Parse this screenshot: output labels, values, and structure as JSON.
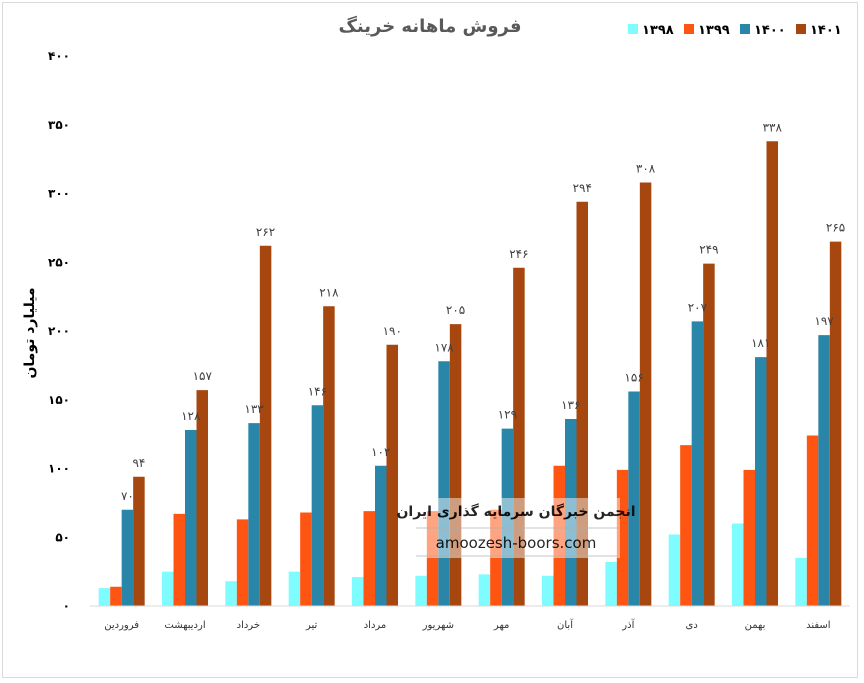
{
  "chart_data": {
    "type": "bar",
    "title": "فروش ماهانه خرینگ",
    "ylabel": "میلیارد تومان",
    "xlabel": "",
    "ylim": [
      0,
      400
    ],
    "yticks": [
      0,
      50,
      100,
      150,
      200,
      250,
      300,
      350,
      400
    ],
    "ytick_labels": [
      "۰",
      "۵۰",
      "۱۰۰",
      "۱۵۰",
      "۲۰۰",
      "۲۵۰",
      "۳۰۰",
      "۳۵۰",
      "۴۰۰"
    ],
    "grid": false,
    "legend_position": "top-right",
    "categories": [
      "فروردین",
      "اردیبهشت",
      "خرداد",
      "تیر",
      "مرداد",
      "شهریور",
      "مهر",
      "آبان",
      "آذر",
      "دی",
      "بهمن",
      "اسفند"
    ],
    "series": [
      {
        "name": "۱۳۹۸",
        "color": "#7ffcff",
        "values": [
          13,
          25,
          18,
          25,
          21,
          22,
          23,
          22,
          32,
          52,
          60,
          35
        ],
        "labels": []
      },
      {
        "name": "۱۳۹۹",
        "color": "#ff5512",
        "values": [
          14,
          67,
          63,
          68,
          69,
          69,
          70,
          102,
          99,
          117,
          99,
          124
        ],
        "labels": []
      },
      {
        "name": "۱۴۰۰",
        "color": "#2a86a8",
        "values": [
          70,
          128,
          133,
          146,
          102,
          178,
          129,
          136,
          156,
          207,
          181,
          197
        ],
        "labels": [
          "۷۰",
          "۱۲۸",
          "۱۳۳",
          "۱۴۶",
          "۱۰۲",
          "۱۷۸",
          "۱۲۹",
          "۱۳۶",
          "۱۵۶",
          "۲۰۷",
          "۱۸۱",
          "۱۹۷"
        ]
      },
      {
        "name": "۱۴۰۱",
        "color": "#a5470e",
        "values": [
          94,
          157,
          262,
          218,
          190,
          205,
          246,
          294,
          308,
          249,
          338,
          265
        ],
        "labels": [
          "۹۴",
          "۱۵۷",
          "۲۶۲",
          "۲۱۸",
          "۱۹۰",
          "۲۰۵",
          "۲۴۶",
          "۲۹۴",
          "۳۰۸",
          "۲۴۹",
          "۳۳۸",
          "۲۶۵"
        ]
      }
    ]
  },
  "watermark": {
    "title": "انجمن خبرگان سرمایه گذاری ایران",
    "url": "amoozesh-boors.com"
  }
}
